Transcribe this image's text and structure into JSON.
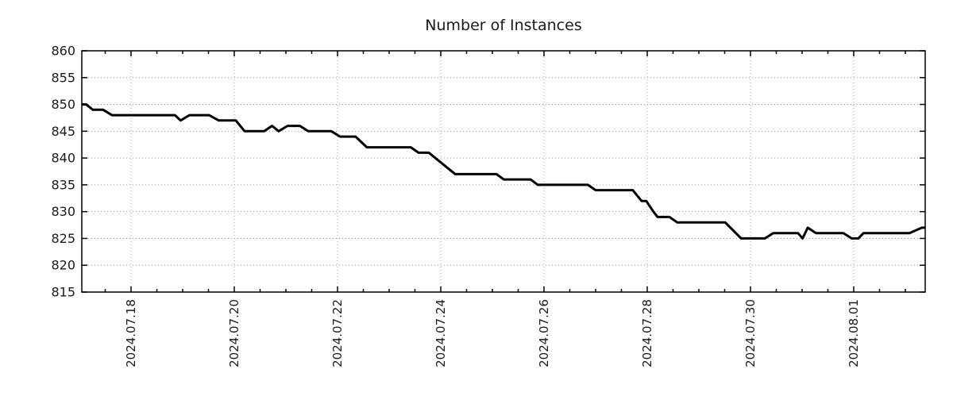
{
  "chart_data": {
    "type": "line",
    "title": "Number of Instances",
    "xlabel": "",
    "ylabel": "",
    "ylim": [
      815,
      860
    ],
    "y_tick_step": 5,
    "y_tick_labels": [
      "815",
      "820",
      "825",
      "830",
      "835",
      "840",
      "845",
      "850",
      "855",
      "860"
    ],
    "x_range": [
      0.046,
      16.385
    ],
    "x_axis_note": "x positions are days; 1.0 = 2024.07.18 00:00",
    "x_tick_positions": [
      1,
      3,
      5,
      7,
      9,
      11,
      13,
      15
    ],
    "x_tick_labels": [
      "2024.07.18",
      "2024.07.20",
      "2024.07.22",
      "2024.07.24",
      "2024.07.26",
      "2024.07.28",
      "2024.07.30",
      "2024.08.01"
    ],
    "x_minor_tick_step": 0.5,
    "grid": true,
    "legend": "none",
    "line_color": "#000000",
    "grid_color": "#a6a6a6",
    "series": [
      {
        "name": "instances",
        "points": [
          [
            0.05,
            850
          ],
          [
            0.13,
            850
          ],
          [
            0.26,
            849
          ],
          [
            0.46,
            849
          ],
          [
            0.63,
            848
          ],
          [
            1.85,
            848
          ],
          [
            1.96,
            847
          ],
          [
            2.13,
            848
          ],
          [
            2.51,
            848
          ],
          [
            2.7,
            847
          ],
          [
            3.03,
            847
          ],
          [
            3.2,
            845
          ],
          [
            3.58,
            845
          ],
          [
            3.73,
            846
          ],
          [
            3.86,
            845
          ],
          [
            4.03,
            846
          ],
          [
            4.27,
            846
          ],
          [
            4.43,
            845
          ],
          [
            4.88,
            845
          ],
          [
            5.05,
            844
          ],
          [
            5.35,
            844
          ],
          [
            5.57,
            842
          ],
          [
            6.42,
            842
          ],
          [
            6.57,
            841
          ],
          [
            6.77,
            841
          ],
          [
            7.28,
            837
          ],
          [
            8.08,
            837
          ],
          [
            8.22,
            836
          ],
          [
            8.74,
            836
          ],
          [
            8.88,
            835
          ],
          [
            9.85,
            835
          ],
          [
            10.0,
            834
          ],
          [
            10.72,
            834
          ],
          [
            10.89,
            832
          ],
          [
            10.98,
            832
          ],
          [
            11.12,
            830
          ],
          [
            11.2,
            829
          ],
          [
            11.43,
            829
          ],
          [
            11.58,
            828
          ],
          [
            12.51,
            828
          ],
          [
            12.82,
            825
          ],
          [
            13.28,
            825
          ],
          [
            13.44,
            826
          ],
          [
            13.92,
            826
          ],
          [
            14.01,
            825
          ],
          [
            14.11,
            827
          ],
          [
            14.27,
            826
          ],
          [
            14.8,
            826
          ],
          [
            14.96,
            825
          ],
          [
            15.09,
            825
          ],
          [
            15.19,
            826
          ],
          [
            16.08,
            826
          ],
          [
            16.32,
            827
          ],
          [
            16.38,
            827
          ]
        ]
      }
    ]
  }
}
